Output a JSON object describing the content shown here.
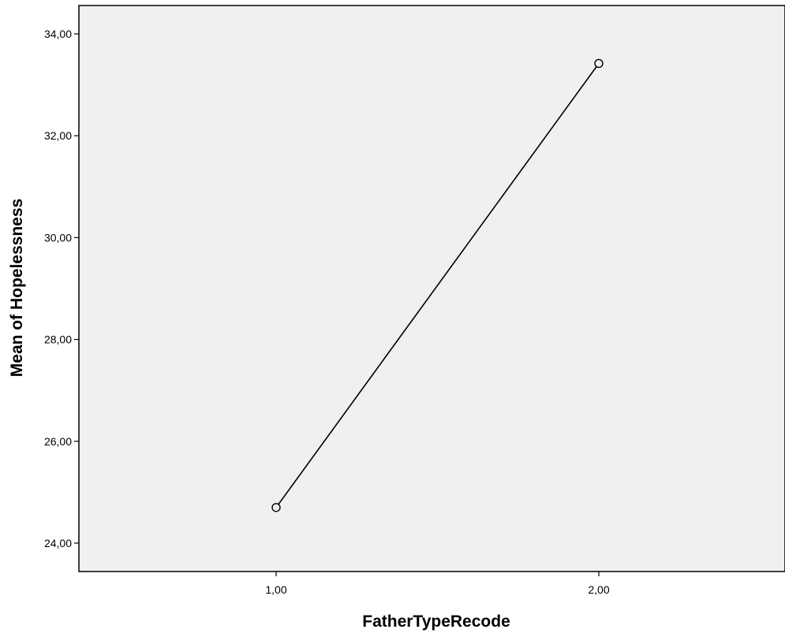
{
  "chart_data": {
    "type": "line",
    "x": [
      "1,00",
      "2,00"
    ],
    "series": [
      {
        "values": [
          24.7,
          33.42
        ]
      }
    ],
    "xlabel": "FatherTypeRecode",
    "ylabel": "Mean of Hopelessness",
    "ylim": [
      24.0,
      34.0
    ],
    "yticks": [
      "24,00",
      "26,00",
      "28,00",
      "30,00",
      "32,00",
      "34,00"
    ],
    "ytick_values": [
      24,
      26,
      28,
      30,
      32,
      34
    ],
    "grid": false,
    "marker": "open-circle",
    "colors": {
      "plot_background": "#f0f0f0",
      "line": "#000000",
      "axis": "#000000"
    }
  }
}
